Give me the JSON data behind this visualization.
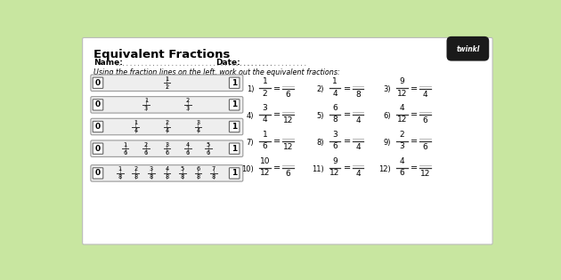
{
  "bg_color": "#c8e6a0",
  "paper_color": "#ffffff",
  "title": "Equivalent Fractions",
  "name_label": "Name:",
  "date_label": "Date:",
  "instruction": "Using the fraction lines on the left, work out the equivalent fractions:",
  "bar_ns": [
    2,
    3,
    4,
    6,
    8
  ],
  "problems": [
    {
      "num": "1",
      "top1": "1",
      "bot1": "2",
      "bot2": "6"
    },
    {
      "num": "2",
      "top1": "1",
      "bot1": "4",
      "bot2": "8"
    },
    {
      "num": "3",
      "top1": "9",
      "bot1": "12",
      "bot2": "4"
    },
    {
      "num": "4",
      "top1": "3",
      "bot1": "4",
      "bot2": "12"
    },
    {
      "num": "5",
      "top1": "6",
      "bot1": "8",
      "bot2": "4"
    },
    {
      "num": "6",
      "top1": "4",
      "bot1": "12",
      "bot2": "6"
    },
    {
      "num": "7",
      "top1": "1",
      "bot1": "6",
      "bot2": "12"
    },
    {
      "num": "8",
      "top1": "3",
      "bot1": "6",
      "bot2": "4"
    },
    {
      "num": "9",
      "top1": "2",
      "bot1": "3",
      "bot2": "6"
    },
    {
      "num": "10",
      "top1": "10",
      "bot1": "12",
      "bot2": "6"
    },
    {
      "num": "11",
      "top1": "9",
      "bot1": "12",
      "bot2": "4"
    },
    {
      "num": "12",
      "top1": "4",
      "bot1": "6",
      "bot2": "12"
    }
  ]
}
